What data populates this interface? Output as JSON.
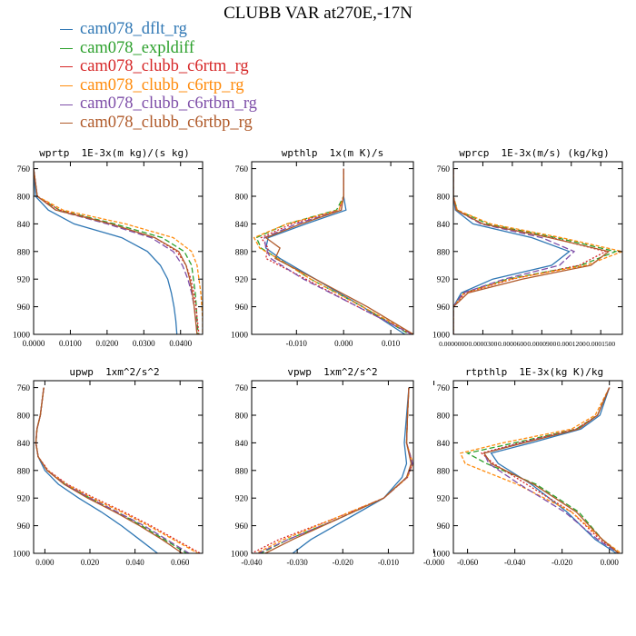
{
  "page": {
    "title": "CLUBB VAR at270E,-17N"
  },
  "legend": [
    {
      "label": "cam078_dflt_rg",
      "color": "#2f77b4"
    },
    {
      "label": "cam078_expldiff",
      "color": "#2ca02c"
    },
    {
      "label": "cam078_clubb_c6rtm_rg",
      "color": "#d62728"
    },
    {
      "label": "cam078_clubb_c6rtp_rg",
      "color": "#ff8c0e"
    },
    {
      "label": "cam078_clubb_c6rtbm_rg",
      "color": "#7e4ea8"
    },
    {
      "label": "cam078_clubb_c6rtbp_rg",
      "color": "#b05a2a"
    }
  ],
  "chart_data": [
    {
      "type": "line",
      "title": "wprtp  1E-3x(m kg)/(s kg)",
      "xlim": [
        0.0,
        0.046
      ],
      "ylim": [
        750,
        1000
      ],
      "y_inverted": true,
      "xticks": [
        0.0,
        0.01,
        0.02,
        0.03,
        0.04
      ],
      "xtick_labels": [
        "0.0000",
        "0.0100",
        "0.0200",
        "0.0300",
        "0.0400"
      ],
      "yticks": [
        760,
        800,
        840,
        880,
        920,
        960,
        1000
      ],
      "y": [
        760,
        800,
        820,
        840,
        860,
        880,
        900,
        920,
        940,
        960,
        980,
        1000
      ],
      "series": [
        {
          "name": "cam078_dflt_rg",
          "color": "#2f77b4",
          "dash": "",
          "values": [
            0.0,
            0.0005,
            0.004,
            0.011,
            0.024,
            0.031,
            0.0345,
            0.0365,
            0.0375,
            0.0382,
            0.0387,
            0.039
          ]
        },
        {
          "name": "cam078_expldiff",
          "color": "#2ca02c",
          "dash": "6,3",
          "values": [
            0.0,
            0.001,
            0.007,
            0.022,
            0.035,
            0.041,
            0.043,
            0.0435,
            0.044,
            0.0443,
            0.0445,
            0.0448
          ]
        },
        {
          "name": "cam078_clubb_c6rtm_rg",
          "color": "#d62728",
          "dash": "2,2",
          "values": [
            0.0,
            0.001,
            0.007,
            0.021,
            0.033,
            0.039,
            0.0415,
            0.0428,
            0.0436,
            0.0442,
            0.0446,
            0.045
          ]
        },
        {
          "name": "cam078_clubb_c6rtp_rg",
          "color": "#ff8c0e",
          "dash": "4,2",
          "values": [
            0.0,
            0.001,
            0.008,
            0.025,
            0.038,
            0.043,
            0.0445,
            0.045,
            0.0455,
            0.0458,
            0.046,
            0.046
          ]
        },
        {
          "name": "cam078_clubb_c6rtbm_rg",
          "color": "#7e4ea8",
          "dash": "7,3",
          "values": [
            0.0,
            0.001,
            0.006,
            0.02,
            0.032,
            0.038,
            0.0405,
            0.042,
            0.043,
            0.0437,
            0.0442,
            0.0445
          ]
        },
        {
          "name": "cam078_clubb_c6rtbp_rg",
          "color": "#b05a2a",
          "dash": "",
          "values": [
            0.0,
            0.001,
            0.006,
            0.021,
            0.033,
            0.0395,
            0.0415,
            0.0425,
            0.0432,
            0.0437,
            0.0441,
            0.0445
          ]
        }
      ]
    },
    {
      "type": "line",
      "title": "wpthlp  1x(m K)/s",
      "xlim": [
        -0.0195,
        0.0148
      ],
      "ylim": [
        750,
        1000
      ],
      "y_inverted": true,
      "xticks": [
        -0.01,
        0.0,
        0.01
      ],
      "xtick_labels": [
        "-0.010",
        "0.000",
        "0.010"
      ],
      "yticks": [
        760,
        800,
        840,
        880,
        920,
        960,
        1000
      ],
      "y": [
        760,
        800,
        820,
        840,
        860,
        875,
        890,
        920,
        960,
        1000
      ],
      "series": [
        {
          "name": "cam078_dflt_rg",
          "color": "#2f77b4",
          "dash": "",
          "values": [
            0.0,
            0.0,
            0.0005,
            -0.008,
            -0.016,
            -0.0165,
            -0.0135,
            -0.006,
            0.004,
            0.013
          ]
        },
        {
          "name": "cam078_expldiff",
          "color": "#2ca02c",
          "dash": "6,3",
          "values": [
            0.0,
            0.0,
            -0.0015,
            -0.012,
            -0.0185,
            -0.0175,
            -0.014,
            -0.007,
            0.004,
            0.014
          ]
        },
        {
          "name": "cam078_clubb_c6rtm_rg",
          "color": "#d62728",
          "dash": "2,2",
          "values": [
            0.0,
            0.0,
            -0.001,
            -0.011,
            -0.0175,
            -0.016,
            -0.0165,
            -0.008,
            0.003,
            0.0145
          ]
        },
        {
          "name": "cam078_clubb_c6rtp_rg",
          "color": "#ff8c0e",
          "dash": "4,2",
          "values": [
            0.0,
            0.0,
            -0.001,
            -0.012,
            -0.019,
            -0.0178,
            -0.014,
            -0.007,
            0.004,
            0.0148
          ]
        },
        {
          "name": "cam078_clubb_c6rtbm_rg",
          "color": "#7e4ea8",
          "dash": "7,3",
          "values": [
            0.0,
            0.0,
            -0.0005,
            -0.01,
            -0.0168,
            -0.0165,
            -0.0155,
            -0.0085,
            0.003,
            0.0145
          ]
        },
        {
          "name": "cam078_clubb_c6rtbp_rg",
          "color": "#b05a2a",
          "dash": "",
          "values": [
            0.0,
            0.0,
            -0.0005,
            -0.009,
            -0.0165,
            -0.0135,
            -0.0145,
            -0.006,
            0.005,
            0.0148
          ]
        }
      ]
    },
    {
      "type": "line",
      "title": "wprcp  1E-3x(m/s) (kg/kg)",
      "xlim": [
        0.0,
        0.000172
      ],
      "ylim": [
        750,
        1000
      ],
      "y_inverted": true,
      "xticks": [
        0.0,
        3e-05,
        6e-05,
        9e-05,
        0.00012,
        0.00015
      ],
      "xtick_labels": [
        "0.0000000",
        "0.0000300",
        "0.0000600",
        "0.0000900",
        "0.0001200",
        "0.0001500"
      ],
      "yticks": [
        760,
        800,
        840,
        880,
        920,
        960,
        1000
      ],
      "y": [
        760,
        800,
        820,
        840,
        860,
        880,
        900,
        920,
        940,
        960,
        980,
        1000
      ],
      "series": [
        {
          "name": "cam078_dflt_rg",
          "color": "#2f77b4",
          "dash": "",
          "values": [
            0.0,
            0.0,
            2e-06,
            2e-05,
            8e-05,
            0.000118,
            0.0001,
            4e-05,
            8e-06,
            0.0,
            0.0,
            0.0
          ]
        },
        {
          "name": "cam078_expldiff",
          "color": "#2ca02c",
          "dash": "6,3",
          "values": [
            0.0,
            0.0,
            4e-06,
            3.5e-05,
            0.000105,
            0.000165,
            0.00013,
            5.5e-05,
            1e-05,
            0.0,
            0.0,
            0.0
          ]
        },
        {
          "name": "cam078_clubb_c6rtm_rg",
          "color": "#d62728",
          "dash": "2,2",
          "values": [
            0.0,
            0.0,
            3e-06,
            3e-05,
            0.0001,
            0.000155,
            0.000128,
            6e-05,
            1.2e-05,
            0.0,
            0.0,
            0.0
          ]
        },
        {
          "name": "cam078_clubb_c6rtp_rg",
          "color": "#ff8c0e",
          "dash": "4,2",
          "values": [
            0.0,
            0.0,
            4e-06,
            3.8e-05,
            0.00011,
            0.000172,
            0.000135,
            5.8e-05,
            1.1e-05,
            0.0,
            0.0,
            0.0
          ]
        },
        {
          "name": "cam078_clubb_c6rtbm_rg",
          "color": "#7e4ea8",
          "dash": "7,3",
          "values": [
            0.0,
            0.0,
            3e-06,
            2.8e-05,
            9e-05,
            0.000123,
            0.000108,
            5.2e-05,
            1e-05,
            0.0,
            0.0,
            0.0
          ]
        },
        {
          "name": "cam078_clubb_c6rtbp_rg",
          "color": "#b05a2a",
          "dash": "",
          "values": [
            0.0,
            0.0,
            3e-06,
            3e-05,
            9.8e-05,
            0.000158,
            0.00014,
            7e-05,
            1.5e-05,
            0.0,
            0.0,
            0.0
          ]
        }
      ]
    },
    {
      "type": "line",
      "title": "upwp  1xm^2/s^2",
      "xlim": [
        -0.005,
        0.07
      ],
      "ylim": [
        750,
        1000
      ],
      "y_inverted": true,
      "xticks": [
        0.0,
        0.02,
        0.04,
        0.06
      ],
      "xtick_labels": [
        "0.000",
        "0.020",
        "0.040",
        "0.060"
      ],
      "yticks": [
        760,
        800,
        840,
        880,
        920,
        960,
        1000
      ],
      "y": [
        760,
        800,
        820,
        840,
        860,
        880,
        900,
        920,
        940,
        960,
        980,
        1000
      ],
      "series": [
        {
          "name": "cam078_dflt_rg",
          "color": "#2f77b4",
          "dash": "",
          "values": [
            -0.0005,
            -0.002,
            -0.0035,
            -0.004,
            -0.003,
            0.0,
            0.006,
            0.015,
            0.025,
            0.034,
            0.042,
            0.05
          ]
        },
        {
          "name": "cam078_expldiff",
          "color": "#2ca02c",
          "dash": "6,3",
          "values": [
            -0.0005,
            -0.002,
            -0.0035,
            -0.004,
            -0.003,
            0.001,
            0.009,
            0.02,
            0.032,
            0.043,
            0.053,
            0.063
          ]
        },
        {
          "name": "cam078_clubb_c6rtm_rg",
          "color": "#d62728",
          "dash": "2,2",
          "values": [
            -0.0005,
            -0.002,
            -0.0035,
            -0.004,
            -0.003,
            0.0015,
            0.01,
            0.022,
            0.035,
            0.047,
            0.058,
            0.069
          ]
        },
        {
          "name": "cam078_clubb_c6rtp_rg",
          "color": "#ff8c0e",
          "dash": "4,2",
          "values": [
            -0.0005,
            -0.002,
            -0.0035,
            -0.004,
            -0.003,
            0.0012,
            0.0095,
            0.021,
            0.034,
            0.046,
            0.057,
            0.068
          ]
        },
        {
          "name": "cam078_clubb_c6rtbm_rg",
          "color": "#7e4ea8",
          "dash": "7,3",
          "values": [
            -0.0005,
            -0.002,
            -0.0035,
            -0.004,
            -0.003,
            0.001,
            0.009,
            0.02,
            0.032,
            0.044,
            0.054,
            0.064
          ]
        },
        {
          "name": "cam078_clubb_c6rtbp_rg",
          "color": "#b05a2a",
          "dash": "",
          "values": [
            -0.0005,
            -0.002,
            -0.0035,
            -0.004,
            -0.003,
            0.001,
            0.0085,
            0.019,
            0.031,
            0.042,
            0.052,
            0.061
          ]
        }
      ]
    },
    {
      "type": "line",
      "title": "vpwp  1xm^2/s^2",
      "xlim": [
        -0.04,
        -0.0045
      ],
      "ylim": [
        750,
        1000
      ],
      "y_inverted": true,
      "xticks": [
        -0.04,
        -0.03,
        -0.02,
        -0.01,
        0.0
      ],
      "xtick_labels": [
        "-0.040",
        "-0.030",
        "-0.020",
        "-0.010",
        "-0.000"
      ],
      "yticks": [
        760,
        800,
        840,
        880,
        920,
        960,
        1000
      ],
      "y": [
        760,
        800,
        840,
        870,
        890,
        920,
        950,
        980,
        1000
      ],
      "series": [
        {
          "name": "cam078_dflt_rg",
          "color": "#2f77b4",
          "dash": "",
          "values": [
            -0.0055,
            -0.006,
            -0.0065,
            -0.006,
            -0.007,
            -0.011,
            -0.019,
            -0.027,
            -0.031
          ]
        },
        {
          "name": "cam078_expldiff",
          "color": "#2ca02c",
          "dash": "6,3",
          "values": [
            -0.0055,
            -0.0058,
            -0.006,
            -0.0048,
            -0.006,
            -0.011,
            -0.021,
            -0.032,
            -0.038
          ]
        },
        {
          "name": "cam078_clubb_c6rtm_rg",
          "color": "#d62728",
          "dash": "2,2",
          "values": [
            -0.0055,
            -0.0058,
            -0.006,
            -0.0047,
            -0.0058,
            -0.011,
            -0.022,
            -0.034,
            -0.04
          ]
        },
        {
          "name": "cam078_clubb_c6rtp_rg",
          "color": "#ff8c0e",
          "dash": "4,2",
          "values": [
            -0.0055,
            -0.0058,
            -0.006,
            -0.0046,
            -0.0058,
            -0.011,
            -0.022,
            -0.033,
            -0.039
          ]
        },
        {
          "name": "cam078_clubb_c6rtbm_rg",
          "color": "#7e4ea8",
          "dash": "7,3",
          "values": [
            -0.0055,
            -0.0058,
            -0.006,
            -0.0047,
            -0.0059,
            -0.011,
            -0.021,
            -0.032,
            -0.0385
          ]
        },
        {
          "name": "cam078_clubb_c6rtbp_rg",
          "color": "#b05a2a",
          "dash": "",
          "values": [
            -0.0055,
            -0.0058,
            -0.006,
            -0.005,
            -0.006,
            -0.011,
            -0.021,
            -0.031,
            -0.037
          ]
        }
      ]
    },
    {
      "type": "line",
      "title": "rtpthlp  1E-3x(kg K)/kg",
      "xlim": [
        -0.066,
        0.0055
      ],
      "ylim": [
        750,
        1000
      ],
      "y_inverted": true,
      "xticks": [
        -0.06,
        -0.04,
        -0.02,
        0.0
      ],
      "xtick_labels": [
        "-0.060",
        "-0.040",
        "-0.020",
        "0.000"
      ],
      "yticks": [
        760,
        800,
        840,
        880,
        920,
        960,
        1000
      ],
      "y": [
        760,
        800,
        820,
        840,
        855,
        870,
        900,
        940,
        980,
        1000
      ],
      "series": [
        {
          "name": "cam078_dflt_rg",
          "color": "#2f77b4",
          "dash": "",
          "values": [
            0.0,
            -0.004,
            -0.012,
            -0.033,
            -0.05,
            -0.047,
            -0.033,
            -0.018,
            -0.006,
            0.003
          ]
        },
        {
          "name": "cam078_expldiff",
          "color": "#2ca02c",
          "dash": "6,3",
          "values": [
            0.0,
            -0.005,
            -0.014,
            -0.04,
            -0.06,
            -0.052,
            -0.031,
            -0.013,
            -0.003,
            0.004
          ]
        },
        {
          "name": "cam078_clubb_c6rtm_rg",
          "color": "#d62728",
          "dash": "2,2",
          "values": [
            0.0,
            -0.005,
            -0.014,
            -0.038,
            -0.054,
            -0.049,
            -0.035,
            -0.016,
            -0.004,
            0.004
          ]
        },
        {
          "name": "cam078_clubb_c6rtp_rg",
          "color": "#ff8c0e",
          "dash": "4,2",
          "values": [
            0.0,
            -0.006,
            -0.016,
            -0.045,
            -0.063,
            -0.061,
            -0.039,
            -0.016,
            -0.003,
            0.005
          ]
        },
        {
          "name": "cam078_clubb_c6rtbm_rg",
          "color": "#7e4ea8",
          "dash": "7,3",
          "values": [
            0.0,
            -0.005,
            -0.013,
            -0.037,
            -0.053,
            -0.051,
            -0.038,
            -0.019,
            -0.005,
            0.004
          ]
        },
        {
          "name": "cam078_clubb_c6rtbp_rg",
          "color": "#b05a2a",
          "dash": "",
          "values": [
            0.0,
            -0.005,
            -0.013,
            -0.036,
            -0.053,
            -0.05,
            -0.032,
            -0.014,
            -0.003,
            0.004
          ]
        }
      ]
    }
  ]
}
